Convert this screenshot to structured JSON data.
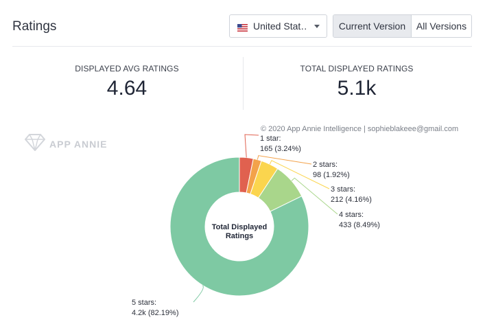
{
  "header": {
    "title": "Ratings",
    "country": {
      "selected": "United Stat…",
      "flag_icon": "us-flag-icon"
    },
    "versions": [
      "Current Version",
      "All Versions"
    ],
    "active_version": "Current Version"
  },
  "stats": {
    "avg": {
      "label": "DISPLAYED AVG RATINGS",
      "value": "4.64"
    },
    "total": {
      "label": "TOTAL DISPLAYED RATINGS",
      "value": "5.1k"
    }
  },
  "watermark": "APP ANNIE",
  "copyright": "© 2020 App Annie Intelligence | sophieblakeee@gmail.com",
  "chart_data": {
    "type": "pie",
    "center_label": [
      "Total Displayed",
      "Ratings"
    ],
    "slices": [
      {
        "name": "1 star",
        "label_line1": "1 star:",
        "label_line2": "165 (3.24%)",
        "value": 165,
        "percent": 3.24,
        "color": "#e0614f"
      },
      {
        "name": "2 stars",
        "label_line1": "2 stars:",
        "label_line2": "98 (1.92%)",
        "value": 98,
        "percent": 1.92,
        "color": "#f3a24a"
      },
      {
        "name": "3 stars",
        "label_line1": "3 stars:",
        "label_line2": "212 (4.16%)",
        "value": 212,
        "percent": 4.16,
        "color": "#fbd54e"
      },
      {
        "name": "4 stars",
        "label_line1": "4 stars:",
        "label_line2": "433 (8.49%)",
        "value": 433,
        "percent": 8.49,
        "color": "#a9d68b"
      },
      {
        "name": "5 stars",
        "label_line1": "5 stars:",
        "label_line2": "4.2k (82.19%)",
        "value": 4200,
        "percent": 82.19,
        "color": "#7ec9a3"
      }
    ]
  }
}
